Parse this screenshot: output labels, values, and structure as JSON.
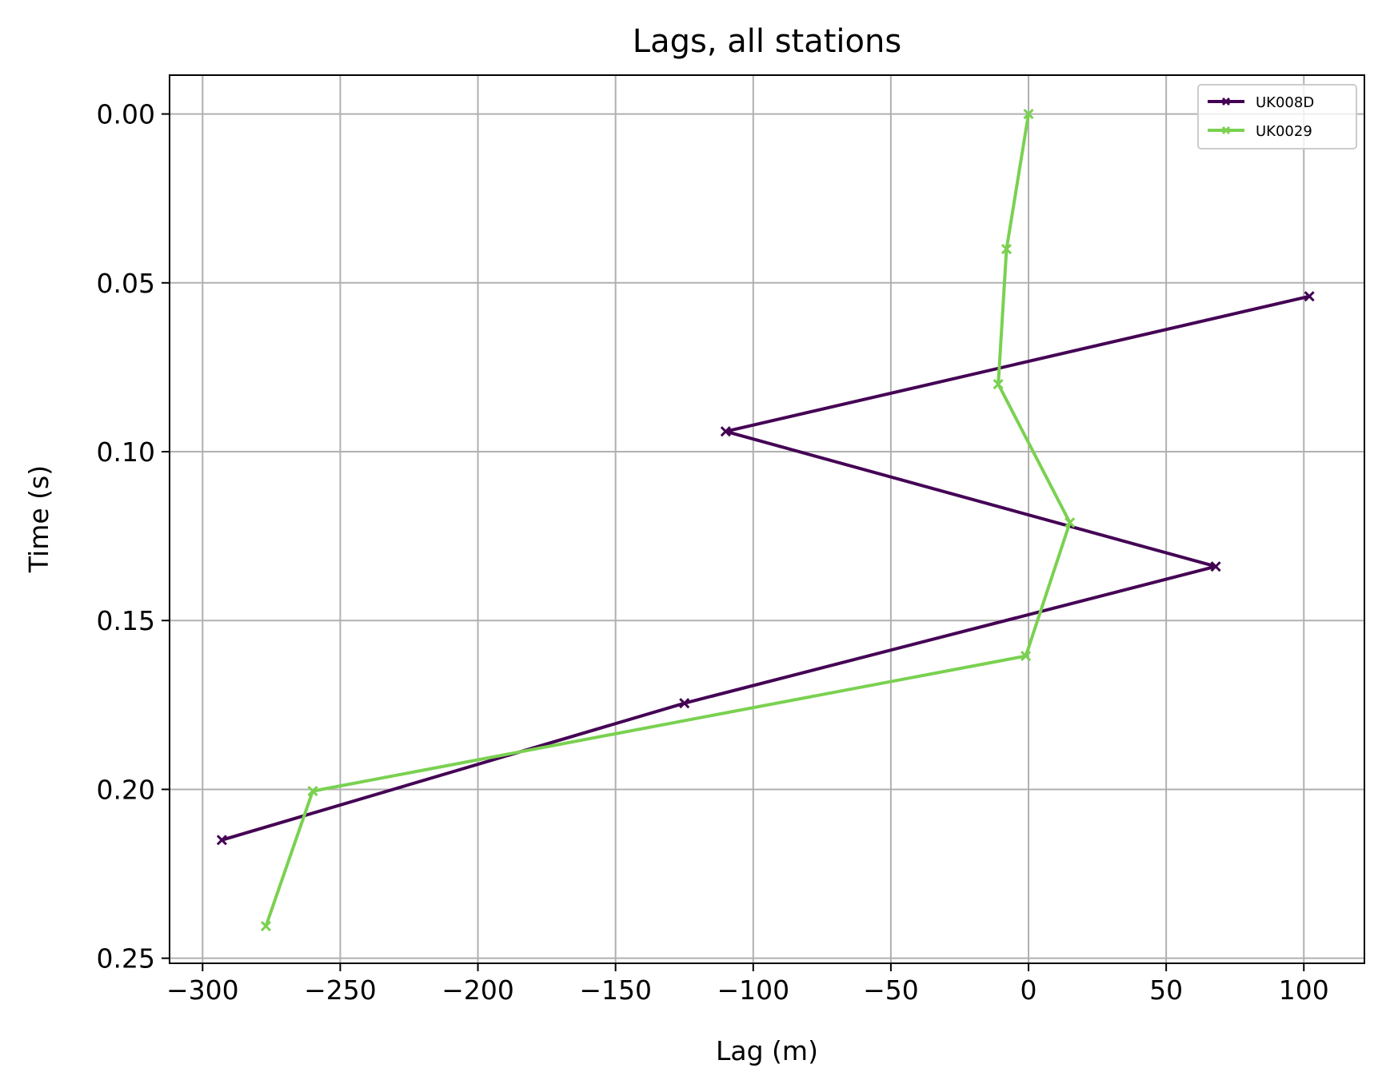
{
  "chart_data": {
    "type": "line",
    "title": "Lags, all stations",
    "xlabel": "Lag (m)",
    "ylabel": "Time (s)",
    "xlim": [
      -312,
      122
    ],
    "ylim": [
      0.2515,
      -0.0115
    ],
    "y_inverted": true,
    "grid": true,
    "legend_position": "top-right",
    "x_ticks": [
      -300,
      -250,
      -200,
      -150,
      -100,
      -50,
      0,
      50,
      100
    ],
    "x_tick_labels": [
      "−300",
      "−250",
      "−200",
      "−150",
      "−100",
      "−50",
      "0",
      "50",
      "100"
    ],
    "y_ticks": [
      0.0,
      0.05,
      0.1,
      0.15,
      0.2,
      0.25
    ],
    "y_tick_labels": [
      "0.00",
      "0.05",
      "0.10",
      "0.15",
      "0.20",
      "0.25"
    ],
    "series": [
      {
        "name": "UK008D",
        "color": "#440154",
        "marker": "x",
        "points": [
          [
            102,
            0.054
          ],
          [
            -110,
            0.094
          ],
          [
            68,
            0.134
          ],
          [
            -125,
            0.1745
          ],
          [
            -293,
            0.215
          ]
        ]
      },
      {
        "name": "UK0029",
        "color": "#7ad151",
        "marker": "x",
        "points": [
          [
            0,
            0.0
          ],
          [
            -8,
            0.04
          ],
          [
            -11,
            0.08
          ],
          [
            15,
            0.121
          ],
          [
            -1,
            0.1605
          ],
          [
            -260,
            0.2005
          ],
          [
            -277,
            0.2405
          ]
        ]
      }
    ]
  }
}
